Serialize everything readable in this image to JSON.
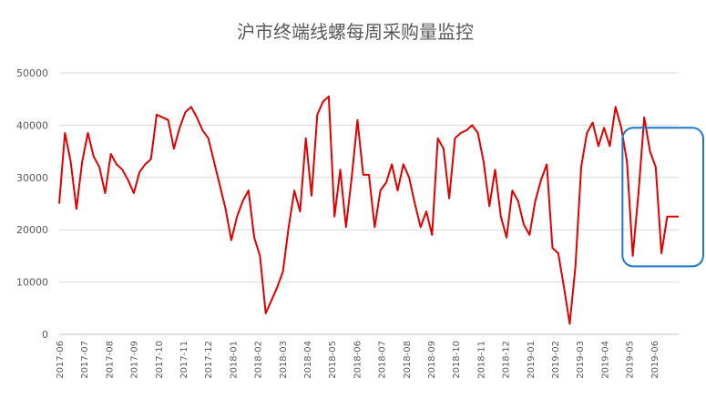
{
  "chart_data": {
    "type": "line",
    "title": "沪市终端线螺每周采购量监控",
    "xlabel": "",
    "ylabel": "",
    "ylim": [
      0,
      50000
    ],
    "yticks": [
      0,
      10000,
      20000,
      30000,
      40000,
      50000
    ],
    "ytick_labels": [
      "0",
      "10000",
      "20000",
      "30000",
      "40000",
      "50000"
    ],
    "grid": "horizontal",
    "legend": "none",
    "x_month_labels": [
      "2017-06",
      "2017-07",
      "2017-08",
      "2017-09",
      "2017-10",
      "2017-11",
      "2017-12",
      "2018-01",
      "2018-02",
      "2018-03",
      "2018-04",
      "2018-05",
      "2018-06",
      "2018-07",
      "2018-08",
      "2018-09",
      "2018-10",
      "2018-11",
      "2018-12",
      "2019-01",
      "2019-02",
      "2019-03",
      "2019-04",
      "2019-05",
      "2019-06"
    ],
    "series": [
      {
        "color": "#e00000",
        "values": [
          25000,
          38500,
          33000,
          24000,
          33000,
          38500,
          34000,
          32000,
          27000,
          34500,
          32500,
          31500,
          29500,
          27000,
          31000,
          32500,
          33500,
          42000,
          41500,
          41000,
          35500,
          39500,
          42500,
          43500,
          41500,
          39000,
          37500,
          33000,
          28500,
          24000,
          18000,
          22500,
          25500,
          27500,
          18500,
          15000,
          4000,
          6500,
          9000,
          12000,
          20500,
          27500,
          23500,
          37500,
          26500,
          42000,
          44500,
          45500,
          22500,
          31500,
          20500,
          30000,
          41000,
          30500,
          30500,
          20500,
          27500,
          29000,
          32500,
          27500,
          32500,
          30000,
          25000,
          20500,
          23500,
          19000,
          37500,
          35500,
          26000,
          37500,
          38500,
          39000,
          40000,
          38500,
          33000,
          24500,
          31500,
          22500,
          18500,
          27500,
          25500,
          21000,
          19000,
          25500,
          29500,
          32500,
          16500,
          15500,
          9000,
          2000,
          13000,
          32000,
          38500,
          40500,
          36000,
          39500,
          36000,
          43500,
          39500,
          33000,
          15000,
          27000,
          41500,
          35000,
          32000,
          15500,
          22500,
          22500,
          22500
        ]
      }
    ],
    "annotations": [
      {
        "type": "rounded-rectangle",
        "color": "#1f77c8",
        "x_start_index": 99,
        "x_end_index": 108,
        "y_range": [
          13000,
          39500
        ]
      }
    ]
  }
}
